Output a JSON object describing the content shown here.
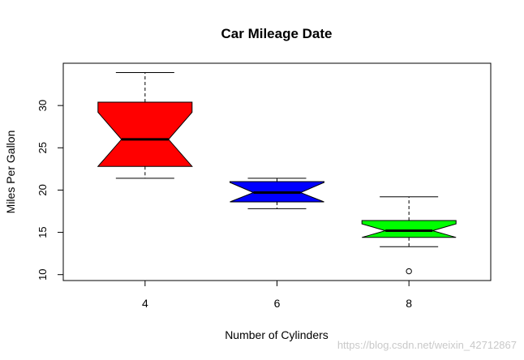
{
  "chart_data": {
    "type": "box",
    "title": "Car Mileage Date",
    "xlabel": "Number of Cylinders",
    "ylabel": "Miles Per Gallon",
    "categories": [
      "4",
      "6",
      "8"
    ],
    "ylim": [
      9.3,
      35.0
    ],
    "yticks": [
      10,
      15,
      20,
      25,
      30
    ],
    "notched": true,
    "boxes": [
      {
        "category": "4",
        "color": "#ff0000",
        "min": 21.4,
        "q1": 22.8,
        "median": 26.0,
        "q3": 30.4,
        "max": 33.9,
        "notch_low": 22.8,
        "notch_high": 29.2,
        "outliers": []
      },
      {
        "category": "6",
        "color": "#0000ff",
        "min": 17.8,
        "q1": 18.6,
        "median": 19.7,
        "q3": 21.0,
        "max": 21.4,
        "notch_low": 18.5,
        "notch_high": 20.9,
        "outliers": []
      },
      {
        "category": "8",
        "color": "#00ff00",
        "min": 13.3,
        "q1": 14.4,
        "median": 15.2,
        "q3": 16.4,
        "max": 19.2,
        "notch_low": 14.4,
        "notch_high": 16.0,
        "outliers": [
          10.4
        ]
      }
    ],
    "colors": {
      "box_outline": "#000000",
      "background": "#ffffff"
    },
    "grid": false,
    "legend": "none"
  },
  "watermark": "https://blog.csdn.net/weixin_42712867"
}
